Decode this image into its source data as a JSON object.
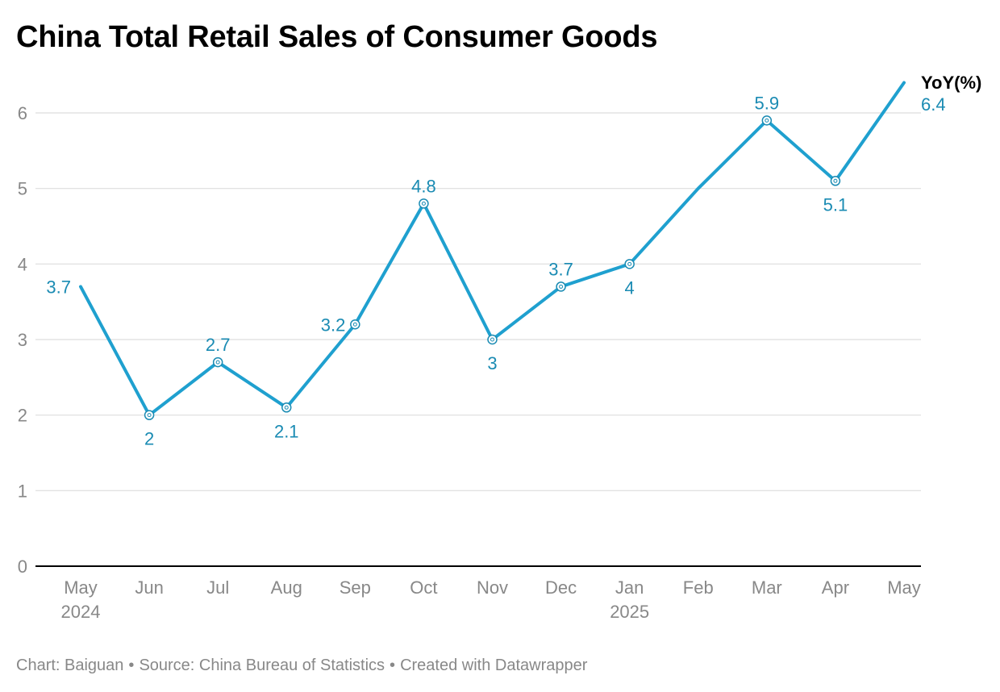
{
  "title": "China Total Retail Sales of Consumer Goods",
  "footer": {
    "chart_by": "Chart: Baiguan",
    "source": "Source: China Bureau of Statistics",
    "created": "Created with Datawrapper"
  },
  "colors": {
    "line": "#1fa0cf",
    "label": "#1a8bb3",
    "grid": "#dddddd",
    "axis": "#000000",
    "tick": "#888888"
  },
  "chart_data": {
    "type": "line",
    "title": "China Total Retail Sales of Consumer Goods",
    "xlabel": "",
    "ylabel": "",
    "ylim": [
      0,
      6
    ],
    "yticks": [
      0,
      1,
      2,
      3,
      4,
      5,
      6
    ],
    "grid": true,
    "categories": [
      "May 2024",
      "Jun",
      "Jul",
      "Aug",
      "Sep",
      "Oct",
      "Nov",
      "Dec",
      "Jan 2025",
      "Feb",
      "Mar",
      "Apr",
      "May"
    ],
    "x_tick_labels": [
      [
        "May",
        "2024"
      ],
      [
        "Jun"
      ],
      [
        "Jul"
      ],
      [
        "Aug"
      ],
      [
        "Sep"
      ],
      [
        "Oct"
      ],
      [
        "Nov"
      ],
      [
        "Dec"
      ],
      [
        "Jan",
        "2025"
      ],
      [
        "Feb"
      ],
      [
        "Mar"
      ],
      [
        "Apr"
      ],
      [
        "May"
      ]
    ],
    "series": [
      {
        "name": "YoY(%)",
        "values": [
          3.7,
          2,
          2.7,
          2.1,
          3.2,
          4.8,
          3,
          3.7,
          4,
          5,
          5.9,
          5.1,
          6.4
        ],
        "value_labels": [
          "3.7",
          "2",
          "2.7",
          "2.1",
          "3.2",
          "4.8",
          "3",
          "3.7",
          "4",
          null,
          "5.9",
          "5.1",
          "6.4"
        ],
        "markers": [
          false,
          true,
          true,
          true,
          true,
          true,
          true,
          true,
          true,
          false,
          true,
          true,
          false
        ],
        "label_positions": [
          "left",
          "below",
          "above",
          "below",
          "left",
          "above",
          "below",
          "above",
          "below",
          null,
          "above",
          "below",
          "end"
        ]
      }
    ]
  }
}
